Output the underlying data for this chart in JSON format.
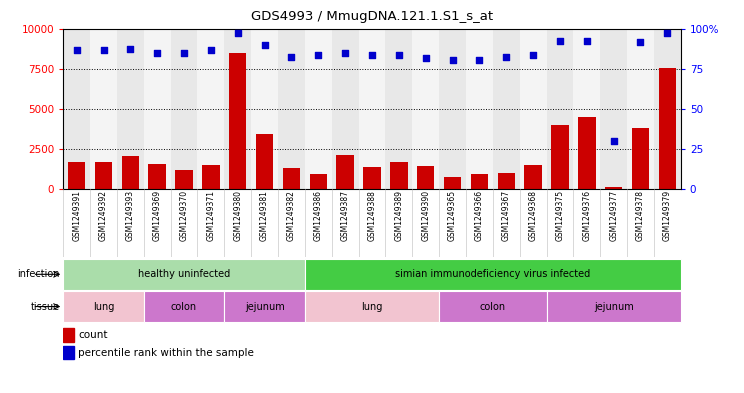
{
  "title": "GDS4993 / MmugDNA.121.1.S1_s_at",
  "samples": [
    "GSM1249391",
    "GSM1249392",
    "GSM1249393",
    "GSM1249369",
    "GSM1249370",
    "GSM1249371",
    "GSM1249380",
    "GSM1249381",
    "GSM1249382",
    "GSM1249386",
    "GSM1249387",
    "GSM1249388",
    "GSM1249389",
    "GSM1249390",
    "GSM1249365",
    "GSM1249366",
    "GSM1249367",
    "GSM1249368",
    "GSM1249375",
    "GSM1249376",
    "GSM1249377",
    "GSM1249378",
    "GSM1249379"
  ],
  "counts": [
    1650,
    1700,
    2050,
    1550,
    1200,
    1500,
    8500,
    3450,
    1300,
    950,
    2100,
    1350,
    1650,
    1400,
    750,
    950,
    1000,
    1500,
    4000,
    4500,
    130,
    3800,
    7600
  ],
  "percentiles": [
    87,
    87,
    88,
    85,
    85,
    87,
    98,
    90,
    83,
    84,
    85,
    84,
    84,
    82,
    81,
    81,
    83,
    84,
    93,
    93,
    30,
    92,
    98
  ],
  "infection_groups": [
    {
      "label": "healthy uninfected",
      "start": 0,
      "end": 9,
      "color": "#aaddaa"
    },
    {
      "label": "simian immunodeficiency virus infected",
      "start": 9,
      "end": 23,
      "color": "#44cc44"
    }
  ],
  "tissue_groups": [
    {
      "label": "lung",
      "start": 0,
      "end": 3,
      "color": "#f2c4d0"
    },
    {
      "label": "colon",
      "start": 3,
      "end": 6,
      "color": "#cc77cc"
    },
    {
      "label": "jejunum",
      "start": 6,
      "end": 9,
      "color": "#cc77cc"
    },
    {
      "label": "lung",
      "start": 9,
      "end": 14,
      "color": "#f2c4d0"
    },
    {
      "label": "colon",
      "start": 14,
      "end": 18,
      "color": "#cc77cc"
    },
    {
      "label": "jejunum",
      "start": 18,
      "end": 23,
      "color": "#cc77cc"
    }
  ],
  "bar_color": "#cc0000",
  "dot_color": "#0000cc",
  "ylim_left": [
    0,
    10000
  ],
  "ylim_right": [
    0,
    100
  ],
  "yticks_left": [
    0,
    2500,
    5000,
    7500,
    10000
  ],
  "yticks_right": [
    0,
    25,
    50,
    75,
    100
  ],
  "legend_count_label": "count",
  "legend_percentile_label": "percentile rank within the sample",
  "col_bg_even": "#e8e8e8",
  "col_bg_odd": "#f4f4f4"
}
